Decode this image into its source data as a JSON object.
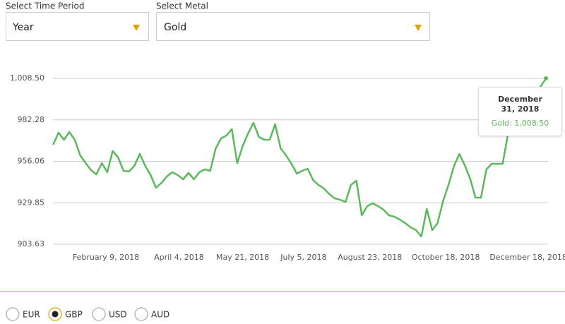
{
  "controls": {
    "time_period": {
      "label": "Select Time Period",
      "value": "Year"
    },
    "metal": {
      "label": "Select Metal",
      "value": "Gold"
    }
  },
  "chart_data": {
    "type": "line",
    "color": "#5cb85c",
    "grid": true,
    "x": [
      "2018-01-01",
      "2018-01-05",
      "2018-01-09",
      "2018-01-13",
      "2018-01-17",
      "2018-01-21",
      "2018-01-25",
      "2018-01-29",
      "2018-02-02",
      "2018-02-06",
      "2018-02-10",
      "2018-02-14",
      "2018-02-18",
      "2018-02-22",
      "2018-02-26",
      "2018-03-02",
      "2018-03-06",
      "2018-03-10",
      "2018-03-14",
      "2018-03-18",
      "2018-03-22",
      "2018-03-26",
      "2018-03-30",
      "2018-04-03",
      "2018-04-07",
      "2018-04-11",
      "2018-04-15",
      "2018-04-19",
      "2018-04-23",
      "2018-04-27",
      "2018-05-01",
      "2018-05-05",
      "2018-05-09",
      "2018-05-13",
      "2018-05-17",
      "2018-05-21",
      "2018-05-25",
      "2018-05-29",
      "2018-06-02",
      "2018-06-06",
      "2018-06-10",
      "2018-06-14",
      "2018-06-18",
      "2018-06-22",
      "2018-06-26",
      "2018-06-30",
      "2018-07-04",
      "2018-07-08",
      "2018-07-12",
      "2018-07-16",
      "2018-07-20",
      "2018-07-24",
      "2018-07-28",
      "2018-08-01",
      "2018-08-05",
      "2018-08-09",
      "2018-08-13",
      "2018-08-17",
      "2018-08-21",
      "2018-08-25",
      "2018-08-29",
      "2018-09-02",
      "2018-09-06",
      "2018-09-10",
      "2018-09-14",
      "2018-09-18",
      "2018-09-22",
      "2018-09-26",
      "2018-09-30",
      "2018-10-04",
      "2018-10-08",
      "2018-10-12",
      "2018-10-16",
      "2018-10-20",
      "2018-10-24",
      "2018-10-28",
      "2018-11-01",
      "2018-11-05",
      "2018-11-09",
      "2018-11-13",
      "2018-11-17",
      "2018-11-21",
      "2018-11-25",
      "2018-11-29",
      "2018-12-03",
      "2018-12-07",
      "2018-12-11",
      "2018-12-15",
      "2018-12-19",
      "2018-12-23",
      "2018-12-27",
      "2018-12-31"
    ],
    "values": [
      966.56,
      974.14,
      969.68,
      974.59,
      969.68,
      959.86,
      954.96,
      950.49,
      947.82,
      954.96,
      949.16,
      962.54,
      958.53,
      950.05,
      949.6,
      953.17,
      960.76,
      953.17,
      947.37,
      939.34,
      942.46,
      946.48,
      949.16,
      947.37,
      944.69,
      948.71,
      944.69,
      949.16,
      950.94,
      950.05,
      963.88,
      970.57,
      972.36,
      976.37,
      954.96,
      965.66,
      973.7,
      980.39,
      971.47,
      969.68,
      969.68,
      979.5,
      964.33,
      959.86,
      954.51,
      948.26,
      950.05,
      951.39,
      944.25,
      941.12,
      938.89,
      935.32,
      932.65,
      931.75,
      930.41,
      941.12,
      943.8,
      921.94,
      927.74,
      929.52,
      927.74,
      925.51,
      921.94,
      921.04,
      919.26,
      917.03,
      914.35,
      912.57,
      908.55,
      925.95,
      912.57,
      917.03,
      930.86,
      941.12,
      952.72,
      960.76,
      953.62,
      945.14,
      933.09,
      933.09,
      950.94,
      954.51,
      954.51,
      954.51,
      973.25,
      972.36,
      976.82,
      981.73,
      991.54,
      996.9,
      1003.15,
      1008.5
    ],
    "xlim": [
      "2018-01-01",
      "2018-12-31"
    ],
    "xticks": [
      {
        "value": "2018-02-09",
        "label": "February 9, 2018"
      },
      {
        "value": "2018-04-04",
        "label": "April 4, 2018"
      },
      {
        "value": "2018-05-21",
        "label": "May 21, 2018"
      },
      {
        "value": "2018-07-05",
        "label": "July 5, 2018"
      },
      {
        "value": "2018-08-23",
        "label": "August 23, 2018"
      },
      {
        "value": "2018-10-18",
        "label": "October 18, 2018"
      },
      {
        "value": "2018-12-18",
        "label": "December 18, 2018"
      }
    ],
    "ylim": [
      901.5,
      1011
    ],
    "yticks": [
      903.63,
      929.85,
      956.06,
      982.28,
      {
        "value": 1008.5,
        "label": "1,008.50"
      }
    ]
  },
  "tooltip": {
    "title": "December 31, 2018",
    "text": "Gold: 1,008.50"
  },
  "currencies": {
    "options": [
      "EUR",
      "GBP",
      "USD",
      "AUD"
    ],
    "selected": "GBP"
  }
}
